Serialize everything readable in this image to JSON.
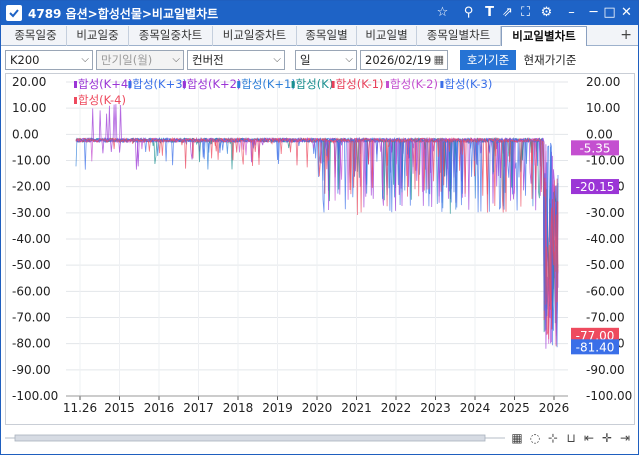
{
  "window": {
    "title": "4789 옵션>합성선물>비교일별차트",
    "icons": [
      "star-icon",
      "link-off-icon",
      "text-icon",
      "share-icon",
      "fullscreen-icon",
      "settings-icon",
      "minimize-icon",
      "maximize-icon",
      "close-icon"
    ],
    "title_bg": "#1e63c6"
  },
  "tabs": [
    "종목일중",
    "비교일중",
    "종목일중차트",
    "비교일중차트",
    "종목일별",
    "비교일별",
    "종목일별차트",
    "비교일별차트"
  ],
  "active_tab": 7,
  "controls": {
    "symbol": "K200",
    "expiry": "만기일(월)",
    "type": "컨버전",
    "period": "일",
    "date": "2026/02/19",
    "quote_basis": "호가기준",
    "price_basis": "현재가기준"
  },
  "chart_data": {
    "type": "line",
    "legend": [
      {
        "name": "합성(K+4)",
        "color": "#9b35d6"
      },
      {
        "name": "합성(K+3)",
        "color": "#3a6fe8"
      },
      {
        "name": "합성(K+2)",
        "color": "#9b35d6"
      },
      {
        "name": "합성(K+1)",
        "color": "#2f7fd8"
      },
      {
        "name": "합성(K)",
        "color": "#1a8f8f"
      },
      {
        "name": "합성(K-1)",
        "color": "#e8405a"
      },
      {
        "name": "합성(K-2)",
        "color": "#c44fd0"
      },
      {
        "name": "합성(K-3)",
        "color": "#3a6fe8"
      },
      {
        "name": "합성(K-4)",
        "color": "#ee4a5e"
      }
    ],
    "x_labels": [
      "11.26",
      "2015",
      "2016",
      "2017",
      "2018",
      "2019",
      "2020",
      "2021",
      "2022",
      "2023",
      "2024",
      "2025",
      "2026"
    ],
    "y_ticks": [
      "20.00",
      "10.00",
      "0.00",
      "-10.00",
      "-20.00",
      "-30.00",
      "-40.00",
      "-50.00",
      "-60.00",
      "-70.00",
      "-80.00",
      "-90.00",
      "-100.00"
    ],
    "ylim": [
      -100,
      20
    ],
    "last_values": [
      {
        "label": "-5.35",
        "value": -5.35,
        "color": "#c44fd0"
      },
      {
        "label": "-20.15",
        "value": -20.15,
        "color": "#9b35d6"
      },
      {
        "label": "-77.00",
        "value": -77.0,
        "color": "#ee4a5e"
      },
      {
        "label": "-81.40",
        "value": -81.4,
        "color": "#3a6fe8"
      }
    ],
    "grid": true
  }
}
